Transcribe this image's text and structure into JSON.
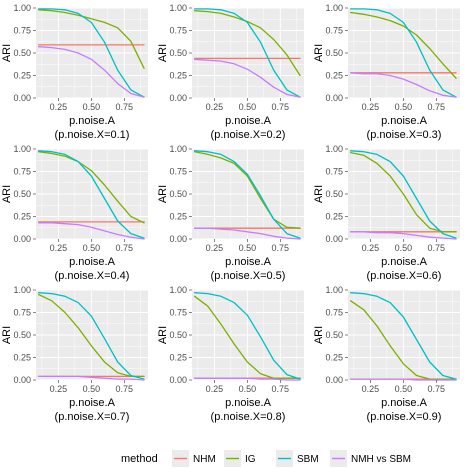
{
  "chart_data": {
    "type": "line",
    "xlabel": "p.noise.A",
    "ylabel": "ARI",
    "xlim": [
      0.08,
      0.93
    ],
    "ylim": [
      0,
      1
    ],
    "x_ticks": [
      0.25,
      0.5,
      0.75
    ],
    "y_ticks": [
      0.0,
      0.25,
      0.5,
      0.75,
      1.0
    ],
    "x_tick_labels": [
      "0.25",
      "0.50",
      "0.75"
    ],
    "y_tick_labels": [
      "0.00",
      "0.25",
      "0.50",
      "0.75",
      "1.00"
    ],
    "grid": true,
    "legend": {
      "title": "method",
      "position": "bottom",
      "entries": [
        {
          "name": "NHM",
          "color": "#F8766D"
        },
        {
          "name": "IG",
          "color": "#7CAE00"
        },
        {
          "name": "SBM",
          "color": "#00BFC4"
        },
        {
          "name": "NMH vs SBM",
          "color": "#C77CFF"
        }
      ]
    },
    "x": [
      0.1,
      0.2,
      0.3,
      0.4,
      0.5,
      0.6,
      0.7,
      0.8,
      0.9
    ],
    "panels": [
      {
        "strip": "(p.noise.X=0.1)",
        "series": [
          {
            "name": "NHM",
            "values": [
              0.59,
              0.59,
              0.59,
              0.59,
              0.59,
              0.59,
              0.59,
              0.59,
              0.59
            ]
          },
          {
            "name": "IG",
            "values": [
              0.98,
              0.97,
              0.95,
              0.92,
              0.88,
              0.84,
              0.78,
              0.63,
              0.33
            ]
          },
          {
            "name": "SBM",
            "values": [
              0.99,
              0.99,
              0.98,
              0.94,
              0.84,
              0.62,
              0.31,
              0.09,
              0.01
            ]
          },
          {
            "name": "NMH vs SBM",
            "values": [
              0.57,
              0.56,
              0.54,
              0.5,
              0.43,
              0.31,
              0.16,
              0.05,
              0.01
            ]
          }
        ]
      },
      {
        "strip": "(p.noise.X=0.2)",
        "series": [
          {
            "name": "NHM",
            "values": [
              0.44,
              0.44,
              0.44,
              0.44,
              0.44,
              0.44,
              0.44,
              0.44,
              0.44
            ]
          },
          {
            "name": "IG",
            "values": [
              0.97,
              0.96,
              0.94,
              0.9,
              0.85,
              0.78,
              0.65,
              0.48,
              0.25
            ]
          },
          {
            "name": "SBM",
            "values": [
              0.99,
              0.99,
              0.98,
              0.94,
              0.84,
              0.62,
              0.31,
              0.09,
              0.01
            ]
          },
          {
            "name": "NMH vs SBM",
            "values": [
              0.43,
              0.42,
              0.41,
              0.38,
              0.32,
              0.23,
              0.12,
              0.04,
              0.01
            ]
          }
        ]
      },
      {
        "strip": "(p.noise.X=0.3)",
        "series": [
          {
            "name": "NHM",
            "values": [
              0.28,
              0.28,
              0.28,
              0.28,
              0.28,
              0.28,
              0.28,
              0.28,
              0.28
            ]
          },
          {
            "name": "IG",
            "values": [
              0.95,
              0.93,
              0.9,
              0.86,
              0.8,
              0.7,
              0.55,
              0.38,
              0.22
            ]
          },
          {
            "name": "SBM",
            "values": [
              0.99,
              0.99,
              0.98,
              0.94,
              0.84,
              0.62,
              0.31,
              0.09,
              0.01
            ]
          },
          {
            "name": "NMH vs SBM",
            "values": [
              0.28,
              0.27,
              0.27,
              0.25,
              0.21,
              0.15,
              0.08,
              0.03,
              0.01
            ]
          }
        ]
      },
      {
        "strip": "(p.noise.X=0.4)",
        "series": [
          {
            "name": "NHM",
            "values": [
              0.19,
              0.19,
              0.19,
              0.19,
              0.19,
              0.19,
              0.19,
              0.19,
              0.19
            ]
          },
          {
            "name": "IG",
            "values": [
              0.97,
              0.95,
              0.92,
              0.86,
              0.76,
              0.6,
              0.42,
              0.25,
              0.18
            ]
          },
          {
            "name": "SBM",
            "values": [
              0.98,
              0.97,
              0.94,
              0.86,
              0.7,
              0.45,
              0.2,
              0.06,
              0.01
            ]
          },
          {
            "name": "NMH vs SBM",
            "values": [
              0.18,
              0.18,
              0.17,
              0.16,
              0.13,
              0.09,
              0.05,
              0.02,
              0.0
            ]
          }
        ]
      },
      {
        "strip": "(p.noise.X=0.5)",
        "series": [
          {
            "name": "NHM",
            "values": [
              0.12,
              0.12,
              0.12,
              0.12,
              0.12,
              0.12,
              0.12,
              0.12,
              0.12
            ]
          },
          {
            "name": "IG",
            "values": [
              0.97,
              0.94,
              0.9,
              0.84,
              0.7,
              0.45,
              0.22,
              0.13,
              0.12
            ]
          },
          {
            "name": "SBM",
            "values": [
              0.98,
              0.97,
              0.94,
              0.86,
              0.72,
              0.48,
              0.22,
              0.06,
              0.01
            ]
          },
          {
            "name": "NMH vs SBM",
            "values": [
              0.12,
              0.12,
              0.11,
              0.1,
              0.08,
              0.06,
              0.03,
              0.01,
              0.0
            ]
          }
        ]
      },
      {
        "strip": "(p.noise.X=0.6)",
        "series": [
          {
            "name": "NHM",
            "values": [
              0.08,
              0.08,
              0.08,
              0.08,
              0.08,
              0.08,
              0.08,
              0.08,
              0.08
            ]
          },
          {
            "name": "IG",
            "values": [
              0.96,
              0.93,
              0.84,
              0.7,
              0.5,
              0.27,
              0.12,
              0.08,
              0.08
            ]
          },
          {
            "name": "SBM",
            "values": [
              0.98,
              0.97,
              0.94,
              0.86,
              0.7,
              0.45,
              0.2,
              0.06,
              0.01
            ]
          },
          {
            "name": "NMH vs SBM",
            "values": [
              0.08,
              0.08,
              0.07,
              0.07,
              0.06,
              0.04,
              0.02,
              0.01,
              0.0
            ]
          }
        ]
      },
      {
        "strip": "(p.noise.X=0.7)",
        "series": [
          {
            "name": "NHM",
            "values": [
              0.04,
              0.04,
              0.04,
              0.04,
              0.04,
              0.04,
              0.04,
              0.04,
              0.04
            ]
          },
          {
            "name": "IG",
            "values": [
              0.95,
              0.88,
              0.75,
              0.58,
              0.38,
              0.2,
              0.08,
              0.04,
              0.04
            ]
          },
          {
            "name": "SBM",
            "values": [
              0.97,
              0.96,
              0.93,
              0.86,
              0.71,
              0.46,
              0.2,
              0.05,
              0.01
            ]
          },
          {
            "name": "NMH vs SBM",
            "values": [
              0.04,
              0.04,
              0.04,
              0.04,
              0.03,
              0.02,
              0.01,
              0.01,
              0.0
            ]
          }
        ]
      },
      {
        "strip": "(p.noise.X=0.8)",
        "series": [
          {
            "name": "NHM",
            "values": [
              0.02,
              0.02,
              0.02,
              0.02,
              0.02,
              0.02,
              0.02,
              0.02,
              0.02
            ]
          },
          {
            "name": "IG",
            "values": [
              0.93,
              0.82,
              0.62,
              0.4,
              0.2,
              0.07,
              0.02,
              0.02,
              0.02
            ]
          },
          {
            "name": "SBM",
            "values": [
              0.97,
              0.96,
              0.93,
              0.86,
              0.72,
              0.48,
              0.22,
              0.06,
              0.01
            ]
          },
          {
            "name": "NMH vs SBM",
            "values": [
              0.02,
              0.02,
              0.02,
              0.02,
              0.02,
              0.01,
              0.01,
              0.0,
              0.0
            ]
          }
        ]
      },
      {
        "strip": "(p.noise.X=0.9)",
        "series": [
          {
            "name": "NHM",
            "values": [
              0.01,
              0.01,
              0.01,
              0.01,
              0.01,
              0.01,
              0.01,
              0.01,
              0.01
            ]
          },
          {
            "name": "IG",
            "values": [
              0.88,
              0.78,
              0.6,
              0.38,
              0.18,
              0.05,
              0.01,
              0.01,
              0.01
            ]
          },
          {
            "name": "SBM",
            "values": [
              0.97,
              0.96,
              0.93,
              0.86,
              0.7,
              0.45,
              0.2,
              0.05,
              0.01
            ]
          },
          {
            "name": "NMH vs SBM",
            "values": [
              0.01,
              0.01,
              0.01,
              0.01,
              0.01,
              0.0,
              0.0,
              0.0,
              0.0
            ]
          }
        ]
      }
    ]
  }
}
